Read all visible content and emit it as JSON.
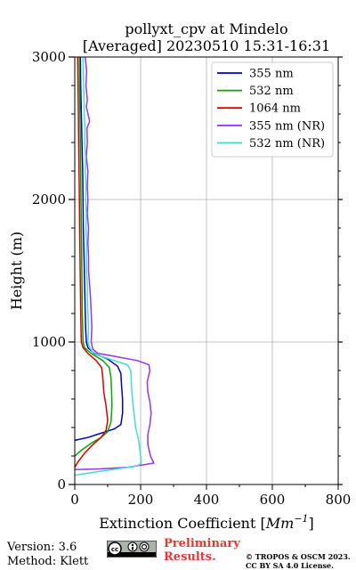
{
  "chart_data": {
    "type": "line",
    "title": "pollyxt_cpv at Mindelo",
    "subtitle": "[Averaged] 20230510 15:31-16:31",
    "xlabel": "Extinction Coefficient [Mm⁻¹]",
    "xlabel_base": "Extinction Coefficient [",
    "xlabel_unit": "Mm",
    "xlabel_exp": "−1",
    "xlabel_end": "]",
    "ylabel": "Height (m)",
    "xlim": [
      0,
      800
    ],
    "ylim": [
      0,
      3000
    ],
    "xticks": [
      0,
      200,
      400,
      600,
      800
    ],
    "yticks": [
      0,
      1000,
      2000,
      3000
    ],
    "grid": true,
    "legend_position": "top-right",
    "series": [
      {
        "name": "355 nm",
        "color": "#0000cc",
        "points": [
          [
            0,
            310
          ],
          [
            40,
            330
          ],
          [
            80,
            360
          ],
          [
            120,
            390
          ],
          [
            140,
            420
          ],
          [
            145,
            500
          ],
          [
            145,
            600
          ],
          [
            142,
            700
          ],
          [
            140,
            780
          ],
          [
            130,
            830
          ],
          [
            100,
            880
          ],
          [
            60,
            920
          ],
          [
            40,
            960
          ],
          [
            35,
            1000
          ],
          [
            33,
            1100
          ],
          [
            32,
            1200
          ],
          [
            30,
            1400
          ],
          [
            28,
            1600
          ],
          [
            26,
            1800
          ],
          [
            25,
            2000
          ],
          [
            24,
            2200
          ],
          [
            22,
            2400
          ],
          [
            20,
            2600
          ],
          [
            18,
            2800
          ],
          [
            17,
            3000
          ]
        ]
      },
      {
        "name": "532 nm",
        "color": "#00aa00",
        "points": [
          [
            0,
            200
          ],
          [
            20,
            240
          ],
          [
            50,
            290
          ],
          [
            80,
            330
          ],
          [
            100,
            370
          ],
          [
            110,
            440
          ],
          [
            113,
            550
          ],
          [
            112,
            650
          ],
          [
            110,
            750
          ],
          [
            105,
            820
          ],
          [
            85,
            870
          ],
          [
            50,
            920
          ],
          [
            30,
            960
          ],
          [
            25,
            1000
          ],
          [
            24,
            1100
          ],
          [
            23,
            1200
          ],
          [
            22,
            1400
          ],
          [
            21,
            1600
          ],
          [
            20,
            1800
          ],
          [
            19,
            2000
          ],
          [
            18,
            2200
          ],
          [
            17,
            2400
          ],
          [
            16,
            2600
          ],
          [
            15,
            2800
          ],
          [
            14,
            3000
          ]
        ]
      },
      {
        "name": "1064 nm",
        "color": "#dd0000",
        "points": [
          [
            0,
            120
          ],
          [
            10,
            160
          ],
          [
            30,
            220
          ],
          [
            55,
            280
          ],
          [
            80,
            330
          ],
          [
            95,
            380
          ],
          [
            100,
            450
          ],
          [
            95,
            550
          ],
          [
            88,
            650
          ],
          [
            85,
            750
          ],
          [
            82,
            820
          ],
          [
            65,
            870
          ],
          [
            40,
            920
          ],
          [
            25,
            960
          ],
          [
            20,
            1000
          ],
          [
            19,
            1100
          ],
          [
            18,
            1200
          ],
          [
            17,
            1400
          ],
          [
            16,
            1600
          ],
          [
            15,
            1800
          ],
          [
            14,
            2000
          ],
          [
            13,
            2200
          ],
          [
            12,
            2400
          ],
          [
            11,
            2600
          ],
          [
            10,
            2800
          ],
          [
            9,
            3000
          ]
        ]
      },
      {
        "name": "355 nm (NR)",
        "color": "#9933ee",
        "points": [
          [
            0,
            105
          ],
          [
            80,
            110
          ],
          [
            160,
            120
          ],
          [
            240,
            150
          ],
          [
            230,
            200
          ],
          [
            222,
            280
          ],
          [
            222,
            350
          ],
          [
            228,
            420
          ],
          [
            232,
            500
          ],
          [
            228,
            580
          ],
          [
            222,
            650
          ],
          [
            220,
            720
          ],
          [
            228,
            800
          ],
          [
            225,
            840
          ],
          [
            190,
            870
          ],
          [
            120,
            900
          ],
          [
            70,
            920
          ],
          [
            55,
            950
          ],
          [
            50,
            1000
          ],
          [
            52,
            1100
          ],
          [
            50,
            1200
          ],
          [
            48,
            1300
          ],
          [
            45,
            1400
          ],
          [
            42,
            1500
          ],
          [
            42,
            1600
          ],
          [
            40,
            1700
          ],
          [
            42,
            1800
          ],
          [
            38,
            1900
          ],
          [
            40,
            2000
          ],
          [
            38,
            2100
          ],
          [
            40,
            2200
          ],
          [
            35,
            2300
          ],
          [
            38,
            2400
          ],
          [
            37,
            2500
          ],
          [
            45,
            2550
          ],
          [
            35,
            2650
          ],
          [
            38,
            2700
          ],
          [
            34,
            2800
          ],
          [
            36,
            2900
          ],
          [
            32,
            3000
          ]
        ]
      },
      {
        "name": "532 nm (NR)",
        "color": "#44ddcc",
        "points": [
          [
            0,
            65
          ],
          [
            40,
            80
          ],
          [
            100,
            100
          ],
          [
            190,
            130
          ],
          [
            202,
            150
          ],
          [
            200,
            200
          ],
          [
            195,
            300
          ],
          [
            185,
            400
          ],
          [
            180,
            500
          ],
          [
            175,
            600
          ],
          [
            172,
            700
          ],
          [
            170,
            800
          ],
          [
            160,
            840
          ],
          [
            120,
            870
          ],
          [
            80,
            900
          ],
          [
            55,
            930
          ],
          [
            45,
            960
          ],
          [
            40,
            1000
          ],
          [
            42,
            1100
          ],
          [
            40,
            1200
          ],
          [
            38,
            1300
          ],
          [
            38,
            1400
          ],
          [
            36,
            1500
          ],
          [
            35,
            1600
          ],
          [
            36,
            1700
          ],
          [
            34,
            1800
          ],
          [
            35,
            1900
          ],
          [
            33,
            2000
          ],
          [
            34,
            2100
          ],
          [
            32,
            2200
          ],
          [
            33,
            2300
          ],
          [
            30,
            2400
          ],
          [
            31,
            2500
          ],
          [
            29,
            2600
          ],
          [
            28,
            2700
          ],
          [
            27,
            2800
          ],
          [
            26,
            2900
          ],
          [
            25,
            3000
          ]
        ]
      }
    ]
  },
  "footer": {
    "version": "Version: 3.6",
    "method": "Method: Klett",
    "preliminary_line1": "Preliminary",
    "preliminary_line2": "Results.",
    "copyright_line1": "© TROPOS & OSCM 2023.",
    "copyright_line2": "CC BY SA 4.0 License.",
    "cc_badge_icon": "cc-by-sa-icon"
  }
}
